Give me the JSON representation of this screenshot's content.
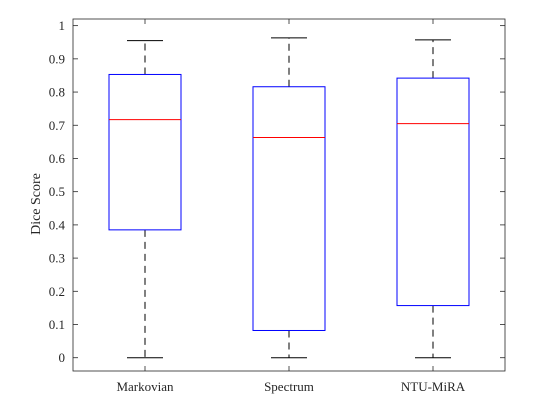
{
  "chart_data": {
    "type": "box",
    "title": "",
    "xlabel": "",
    "ylabel": "Dice Score",
    "ylim": [
      -0.04,
      1.02
    ],
    "yticks": [
      0,
      0.1,
      0.2,
      0.3,
      0.4,
      0.5,
      0.6,
      0.7,
      0.8,
      0.9,
      1
    ],
    "ytick_labels": [
      "0",
      "0.1",
      "0.2",
      "0.3",
      "0.4",
      "0.5",
      "0.6",
      "0.7",
      "0.8",
      "0.9",
      "1"
    ],
    "grid": false,
    "categories": [
      "Markovian",
      "Spectrum",
      "NTU-MiRA"
    ],
    "boxes": [
      {
        "category": "Markovian",
        "whisker_low": 0.0,
        "q1": 0.385,
        "median": 0.717,
        "q3": 0.853,
        "whisker_high": 0.955
      },
      {
        "category": "Spectrum",
        "whisker_low": 0.0,
        "q1": 0.082,
        "median": 0.663,
        "q3": 0.816,
        "whisker_high": 0.963
      },
      {
        "category": "NTU-MiRA",
        "whisker_low": 0.0,
        "q1": 0.157,
        "median": 0.705,
        "q3": 0.842,
        "whisker_high": 0.957
      }
    ],
    "colors": {
      "box": "#0000ff",
      "median": "#ff0000",
      "whisker": "#000000",
      "axis": "#262626"
    }
  }
}
